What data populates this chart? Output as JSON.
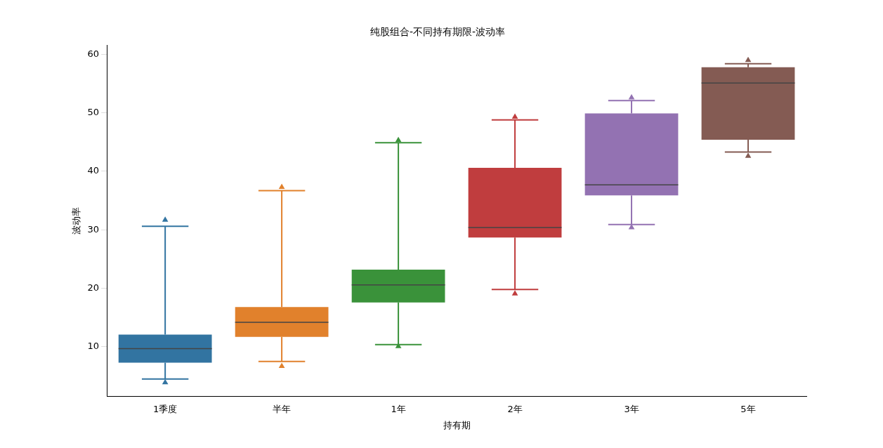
{
  "chart_data": {
    "type": "box",
    "title": "纯股组合-不同持有期限-波动率",
    "xlabel": "持有期",
    "ylabel": "波动率",
    "categories": [
      "1季度",
      "半年",
      "1年",
      "2年",
      "3年",
      "5年"
    ],
    "colors": [
      "#3274a1",
      "#e1812c",
      "#3a923a",
      "#c03d3e",
      "#9372b2",
      "#845b53"
    ],
    "boxes": [
      {
        "low": 4.5,
        "q1": 7.3,
        "median": 9.7,
        "q3": 12.1,
        "high": 30.6,
        "outliers": [
          3.9,
          31.7
        ]
      },
      {
        "low": 7.5,
        "q1": 11.7,
        "median": 14.2,
        "q3": 16.8,
        "high": 36.7,
        "outliers": [
          6.7,
          37.3
        ]
      },
      {
        "low": 10.4,
        "q1": 17.6,
        "median": 20.6,
        "q3": 23.2,
        "high": 44.9,
        "outliers": [
          10.1,
          45.3
        ]
      },
      {
        "low": 19.8,
        "q1": 28.7,
        "median": 30.4,
        "q3": 40.6,
        "high": 48.8,
        "outliers": [
          19.1,
          49.3
        ]
      },
      {
        "low": 30.9,
        "q1": 35.9,
        "median": 37.7,
        "q3": 49.9,
        "high": 52.1,
        "outliers": [
          30.4,
          52.6
        ]
      },
      {
        "low": 43.3,
        "q1": 45.4,
        "median": 55.1,
        "q3": 57.8,
        "high": 58.4,
        "outliers": [
          42.6,
          59.0
        ]
      }
    ],
    "ylim": [
      1.5,
      61.5
    ],
    "yticks": [
      10,
      20,
      30,
      40,
      50,
      60
    ],
    "marker": "triangle",
    "grid": false,
    "legend": false
  }
}
